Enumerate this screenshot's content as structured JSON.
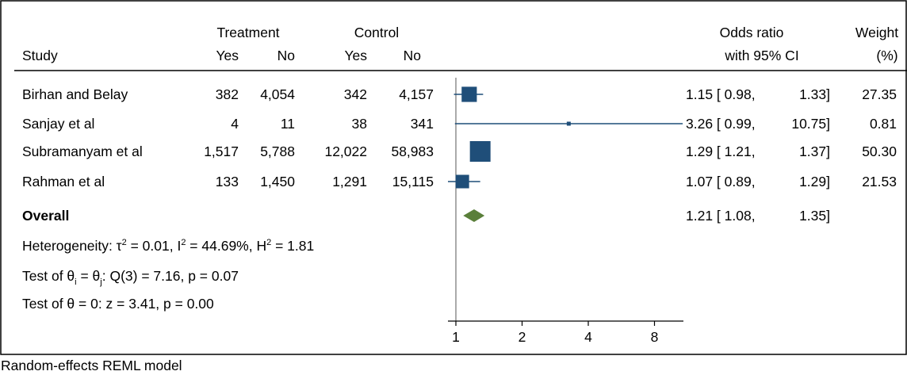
{
  "chart_data": {
    "type": "forest",
    "headers": {
      "study": "Study",
      "treatment": "Treatment",
      "control": "Control",
      "yes": "Yes",
      "no": "No",
      "or_line1": "Odds ratio",
      "or_line2": "with 95% CI",
      "weight_line1": "Weight",
      "weight_line2": "(%)"
    },
    "studies": [
      {
        "name": "Birhan and Belay",
        "t_yes": "382",
        "t_no": "4,054",
        "c_yes": "342",
        "c_no": "4,157",
        "or": 1.15,
        "lo": 0.98,
        "hi": 1.33,
        "or_text": "1.15 [ 0.98,",
        "hi_text": "1.33]",
        "weight": 27.35,
        "weight_text": "27.35"
      },
      {
        "name": "Sanjay et al",
        "t_yes": "4",
        "t_no": "11",
        "c_yes": "38",
        "c_no": "341",
        "or": 3.26,
        "lo": 0.99,
        "hi": 10.75,
        "or_text": "3.26 [ 0.99,",
        "hi_text": "10.75]",
        "weight": 0.81,
        "weight_text": "0.81"
      },
      {
        "name": "Subramanyam et al",
        "t_yes": "1,517",
        "t_no": "5,788",
        "c_yes": "12,022",
        "c_no": "58,983",
        "or": 1.29,
        "lo": 1.21,
        "hi": 1.37,
        "or_text": "1.29 [ 1.21,",
        "hi_text": "1.37]",
        "weight": 50.3,
        "weight_text": "50.30"
      },
      {
        "name": "Rahman et al",
        "t_yes": "133",
        "t_no": "1,450",
        "c_yes": "1,291",
        "c_no": "15,115",
        "or": 1.07,
        "lo": 0.89,
        "hi": 1.29,
        "or_text": "1.07 [ 0.89,",
        "hi_text": "1.29]",
        "weight": 21.53,
        "weight_text": "21.53"
      }
    ],
    "overall": {
      "label": "Overall",
      "or": 1.21,
      "lo": 1.08,
      "hi": 1.35,
      "or_text": "1.21 [ 1.08,",
      "hi_text": "1.35]"
    },
    "stats": {
      "heterogeneity": {
        "p1": "Heterogeneity: τ",
        "s1": "2",
        "p2": " = 0.01, I",
        "s2": "2",
        "p3": " = 44.69%, H",
        "s3": "2",
        "p4": " = 1.81"
      },
      "test1": {
        "p1": "Test of θ",
        "s1": "i",
        "p2": " = θ",
        "s2": "j",
        "p3": ": Q(3) = 7.16, p = 0.07"
      },
      "test2": "Test of θ = 0: z = 3.41, p = 0.00"
    },
    "x_scale": "log",
    "x_ticks": [
      1,
      2,
      4,
      8
    ],
    "xlim": [
      0.85,
      11
    ],
    "colors": {
      "study_marker": "#1f4e79",
      "ci_line": "#1f4e79",
      "overall_diamond": "#5a7f3a",
      "axis": "#000000"
    }
  },
  "caption": "Random-effects REML model"
}
